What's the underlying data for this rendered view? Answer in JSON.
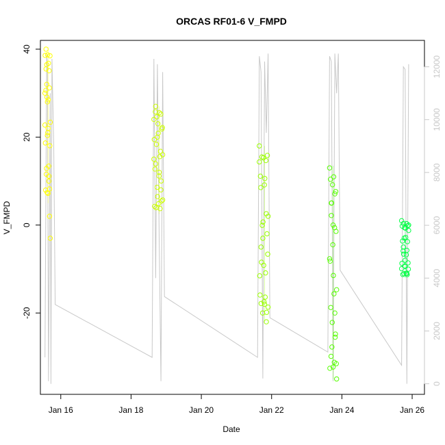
{
  "chart_data": {
    "type": "scatter",
    "title": "ORCAS RF01-6 V_FMPD",
    "xlabel": "Date",
    "ylabel": "V_FMPD",
    "y2label": "",
    "xlim": [
      15.42,
      26.35
    ],
    "ylim": [
      -38.5,
      42.0
    ],
    "y2lim": [
      -400,
      13000
    ],
    "x_ticks": [
      {
        "value": 16,
        "label": "Jan 16"
      },
      {
        "value": 18,
        "label": "Jan 18"
      },
      {
        "value": 20,
        "label": "Jan 20"
      },
      {
        "value": 22,
        "label": "Jan 22"
      },
      {
        "value": 24,
        "label": "Jan 24"
      },
      {
        "value": 26,
        "label": "Jan 26"
      }
    ],
    "y_ticks": [
      -20,
      0,
      20,
      40
    ],
    "y2_ticks": [
      0,
      2000,
      4000,
      6000,
      8000,
      10000,
      12000
    ],
    "series": [
      {
        "color": "#ffff00",
        "x": [
          15.55,
          15.58,
          15.6,
          15.62,
          15.64,
          15.66,
          15.68,
          15.7
        ],
        "y": [
          30,
          40,
          32,
          28,
          22,
          10,
          2,
          -3
        ],
        "min": [
          5,
          -3
        ],
        "max": [
          40.5,
          38
        ]
      },
      {
        "color": "#ccff00",
        "x": [
          18.65,
          18.7,
          18.75,
          18.8,
          18.85,
          18.9
        ],
        "y": [
          15,
          27,
          20,
          12,
          8,
          16
        ],
        "min": [
          2.5,
          3.5
        ],
        "max": [
          27,
          24
        ]
      },
      {
        "color": "#99ff00",
        "x": [
          21.65,
          21.7,
          21.75,
          21.8,
          21.85,
          21.9
        ],
        "y": [
          18,
          -5,
          -3,
          -18,
          -22,
          2
        ],
        "min": [
          -22,
          -20
        ],
        "max": [
          18,
          12
        ]
      },
      {
        "color": "#55ff00",
        "x": [
          23.65,
          23.7,
          23.75,
          23.8,
          23.85
        ],
        "y": [
          13,
          5,
          0,
          -20,
          -35
        ],
        "min": [
          -35,
          -30
        ],
        "max": [
          13.5,
          6.5
        ]
      },
      {
        "color": "#00ff44",
        "x": [
          25.7,
          25.75,
          25.8,
          25.85,
          25.9
        ],
        "y": [
          1,
          -5,
          -8,
          -11,
          0
        ],
        "min": [
          -12,
          -10
        ],
        "max": [
          1,
          0.5
        ]
      }
    ],
    "altitude_series": {
      "color": "#c8c8c8",
      "x": [
        15.55,
        15.6,
        15.62,
        15.65,
        15.7,
        15.72,
        15.75,
        15.8,
        15.84,
        18.6,
        18.65,
        18.7,
        18.75,
        18.8,
        18.85,
        18.9,
        18.95,
        21.6,
        21.65,
        21.7,
        21.75,
        21.8,
        21.85,
        21.9,
        21.95,
        23.6,
        23.65,
        23.7,
        23.75,
        23.8,
        23.85,
        23.9,
        23.95,
        25.7,
        25.75,
        25.8,
        25.85,
        25.9
      ],
      "y": [
        1000,
        12500,
        12000,
        100,
        11000,
        0,
        12300,
        9000,
        3000,
        1000,
        12300,
        4000,
        12100,
        5500,
        100,
        11800,
        3300,
        1000,
        12400,
        11800,
        200,
        12200,
        9500,
        12500,
        2500,
        1200,
        12400,
        12200,
        100,
        12500,
        11000,
        12500,
        4300,
        700,
        12000,
        11900,
        0,
        12100
      ]
    }
  }
}
